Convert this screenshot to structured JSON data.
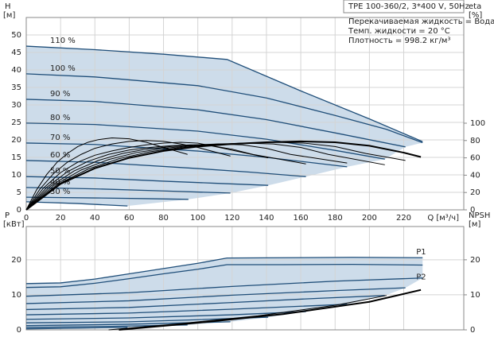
{
  "header": {
    "model": "TPE 100-360/2, 3*400 V, 50Hz",
    "lines": [
      "Перекачиваемая жидкость = Вода",
      "Темп. жидкости = 20 °C",
      "Плотность = 998.2 кг/м³"
    ]
  },
  "chart_data": [
    {
      "type": "line",
      "ylabel": "H",
      "yunit": "[м]",
      "y2label": "eta",
      "y2unit": "[%]",
      "xlabel": "Q [м³/ч]",
      "xlim": [
        0,
        255
      ],
      "xticks": [
        0,
        20,
        40,
        60,
        80,
        100,
        120,
        140,
        160,
        180,
        200,
        220
      ],
      "ylim": [
        0,
        55
      ],
      "yticks": [
        0,
        5,
        10,
        15,
        20,
        25,
        30,
        35,
        40,
        45,
        50
      ],
      "y2lim": [
        0,
        222
      ],
      "y2ticks": [
        0,
        20,
        40,
        60,
        80,
        100
      ],
      "grid": true,
      "shaded_area_color": "#cddcea",
      "series_label_position": "start",
      "series": [
        {
          "name": "110 %",
          "color": "#1f4e79",
          "axis": "y",
          "x": [
            0,
            40,
            80,
            117,
            160,
            200,
            231
          ],
          "values": [
            46.8,
            45.8,
            44.5,
            43,
            34,
            26,
            19.5
          ]
        },
        {
          "name": "100 %",
          "color": "#1f4e79",
          "axis": "y",
          "x": [
            0,
            40,
            100,
            140,
            180,
            210,
            231
          ],
          "values": [
            38.9,
            38,
            35.5,
            32,
            27,
            23,
            19.2
          ]
        },
        {
          "name": "90 %",
          "color": "#1f4e79",
          "axis": "y",
          "x": [
            0,
            40,
            100,
            140,
            180,
            221
          ],
          "values": [
            31.6,
            31,
            28.6,
            25.8,
            22,
            18
          ]
        },
        {
          "name": "80 %",
          "color": "#1f4e79",
          "axis": "y",
          "x": [
            0,
            40,
            100,
            140,
            180,
            209
          ],
          "values": [
            24.8,
            24.4,
            22.5,
            20.2,
            17,
            14.5
          ]
        },
        {
          "name": "70 %",
          "color": "#1f4e79",
          "axis": "y",
          "x": [
            0,
            40,
            100,
            140,
            187
          ],
          "values": [
            19.1,
            18.7,
            16.8,
            15,
            12.3
          ]
        },
        {
          "name": "60 %",
          "color": "#1f4e79",
          "axis": "y",
          "x": [
            0,
            40,
            100,
            130,
            163
          ],
          "values": [
            14.1,
            13.6,
            11.8,
            10.8,
            9.5
          ]
        },
        {
          "name": "50 %",
          "color": "#1f4e79",
          "axis": "y",
          "x": [
            0,
            40,
            80,
            110,
            141
          ],
          "values": [
            9.5,
            9.1,
            8.2,
            7.6,
            7
          ]
        },
        {
          "name": "40 %",
          "color": "#1f4e79",
          "axis": "y",
          "x": [
            0,
            40,
            80,
            119
          ],
          "values": [
            6.4,
            6,
            5.4,
            4.8
          ]
        },
        {
          "name": "30 %",
          "color": "#1f4e79",
          "axis": "y",
          "x": [
            0,
            40,
            70,
            94.5
          ],
          "values": [
            3.6,
            3.4,
            3.2,
            3
          ]
        },
        {
          "name": null,
          "color": "#1f4e79",
          "axis": "y",
          "x": [
            0,
            30,
            59
          ],
          "values": [
            2.3,
            1.8,
            1.1
          ]
        },
        {
          "name": null,
          "color": "#000000",
          "axis": "y2",
          "line_width": 2,
          "x": [
            0,
            20,
            40,
            60,
            80,
            100,
            120,
            140,
            160,
            180,
            200,
            220,
            230
          ],
          "values": [
            0,
            30,
            48,
            60,
            68,
            73,
            76,
            78,
            79,
            78,
            74,
            66,
            61
          ]
        },
        {
          "name": null,
          "color": "#000000",
          "axis": "y2",
          "line_width": 1,
          "x": [
            0,
            18,
            36,
            54,
            72,
            90,
            108,
            126,
            144,
            162,
            180,
            198,
            221
          ],
          "values": [
            0,
            29,
            47,
            59,
            67,
            72,
            75,
            77,
            78,
            77,
            73,
            65,
            57
          ]
        },
        {
          "name": null,
          "color": "#000000",
          "axis": "y2",
          "line_width": 1,
          "x": [
            0,
            16,
            32,
            48,
            64,
            80,
            96,
            112,
            128,
            144,
            160,
            176,
            209
          ],
          "values": [
            0,
            28,
            46,
            58,
            66,
            71,
            74,
            76,
            77,
            76,
            72,
            64,
            52
          ]
        },
        {
          "name": null,
          "color": "#000000",
          "axis": "y2",
          "line_width": 1,
          "x": [
            0,
            14,
            28,
            42,
            56,
            70,
            84,
            98,
            112,
            126,
            140,
            154,
            187
          ],
          "values": [
            0,
            27,
            45,
            57,
            65,
            70,
            73,
            75,
            76,
            75,
            71,
            64,
            54
          ]
        },
        {
          "name": null,
          "color": "#000000",
          "axis": "y2",
          "line_width": 1,
          "x": [
            0,
            12,
            24,
            36,
            48,
            60,
            72,
            84,
            96,
            108,
            120,
            132,
            163
          ],
          "values": [
            0,
            26,
            44,
            56,
            64,
            69,
            72,
            74,
            75,
            74,
            70,
            64,
            53
          ]
        },
        {
          "name": null,
          "color": "#000000",
          "axis": "y2",
          "line_width": 1,
          "x": [
            0,
            10,
            20,
            30,
            40,
            50,
            60,
            70,
            80,
            90,
            100,
            110,
            141
          ],
          "values": [
            0,
            25,
            43,
            55,
            63,
            68,
            72,
            75,
            77,
            78,
            77,
            73,
            60
          ]
        },
        {
          "name": null,
          "color": "#000000",
          "axis": "y2",
          "line_width": 1,
          "x": [
            0,
            8,
            16,
            24,
            32,
            40,
            50,
            60,
            70,
            80,
            90,
            100,
            119
          ],
          "values": [
            0,
            24,
            42,
            55,
            64,
            71,
            76,
            79,
            80,
            79,
            76,
            72,
            62
          ]
        },
        {
          "name": null,
          "color": "#000000",
          "axis": "y2",
          "line_width": 1,
          "x": [
            0,
            6,
            12,
            18,
            24,
            30,
            36,
            42,
            50,
            60,
            70,
            80,
            94
          ],
          "values": [
            0,
            23,
            41,
            55,
            65,
            73,
            78,
            81,
            83,
            82,
            78,
            72,
            64
          ]
        }
      ]
    },
    {
      "type": "line",
      "ylabel": "P",
      "yunit": "[кВт]",
      "y2label": "NPSH",
      "y2unit": "[м]",
      "xlim": [
        0,
        255
      ],
      "ylim": [
        0,
        29.5
      ],
      "yticks": [
        0,
        10,
        20
      ],
      "y2lim": [
        0,
        29.5
      ],
      "y2ticks": [
        0,
        10,
        20
      ],
      "grid": true,
      "shaded_area_color": "#cddcea",
      "series_label_position": "end",
      "series": [
        {
          "name": "P1",
          "color": "#1f4e79",
          "axis": "y",
          "x": [
            0,
            20,
            40,
            60,
            80,
            100,
            117,
            150,
            190,
            231
          ],
          "values": [
            13.2,
            13.4,
            14.5,
            16,
            17.5,
            19,
            20.5,
            20.6,
            20.7,
            20.6
          ]
        },
        {
          "name": "P2",
          "color": "#1f4e79",
          "axis": "y",
          "x": [
            0,
            20,
            40,
            60,
            80,
            100,
            117,
            150,
            190,
            231
          ],
          "values": [
            12.1,
            12.3,
            13.3,
            14.6,
            16,
            17.3,
            18.6,
            18.6,
            18.7,
            18.5
          ]
        },
        {
          "name": null,
          "color": "#1f4e79",
          "axis": "y",
          "x": [
            0,
            60,
            120,
            180,
            231
          ],
          "values": [
            9.6,
            10.6,
            12.4,
            13.9,
            14.8
          ]
        },
        {
          "name": null,
          "color": "#1f4e79",
          "axis": "y",
          "x": [
            0,
            60,
            120,
            180,
            221
          ],
          "values": [
            7.5,
            8.3,
            9.9,
            11.2,
            12
          ]
        },
        {
          "name": null,
          "color": "#1f4e79",
          "axis": "y",
          "x": [
            0,
            60,
            120,
            170,
            209
          ],
          "values": [
            5.8,
            6.4,
            7.8,
            9,
            9.8
          ]
        },
        {
          "name": null,
          "color": "#1f4e79",
          "axis": "y",
          "x": [
            0,
            60,
            120,
            187
          ],
          "values": [
            4.3,
            4.8,
            5.9,
            7.3
          ]
        },
        {
          "name": null,
          "color": "#1f4e79",
          "axis": "y",
          "x": [
            0,
            60,
            120,
            163
          ],
          "values": [
            3,
            3.4,
            4.3,
            5.2
          ]
        },
        {
          "name": null,
          "color": "#1f4e79",
          "axis": "y",
          "x": [
            0,
            60,
            100,
            141
          ],
          "values": [
            2,
            2.3,
            2.9,
            3.6
          ]
        },
        {
          "name": null,
          "color": "#1f4e79",
          "axis": "y",
          "x": [
            0,
            60,
            119
          ],
          "values": [
            1.2,
            1.6,
            2.3
          ]
        },
        {
          "name": null,
          "color": "#1f4e79",
          "axis": "y",
          "x": [
            0,
            50,
            94
          ],
          "values": [
            0.7,
            1,
            1.4
          ]
        },
        {
          "name": null,
          "color": "#1f4e79",
          "axis": "y",
          "x": [
            0,
            30,
            59
          ],
          "values": [
            0.3,
            0.5,
            0.7
          ]
        },
        {
          "name": null,
          "color": "#000000",
          "axis": "y2",
          "line_width": 2,
          "x": [
            54,
            100,
            150,
            200,
            230
          ],
          "values": [
            0,
            2,
            4.5,
            8,
            11.4
          ]
        },
        {
          "name": null,
          "color": "#000000",
          "axis": "y2",
          "line_width": 1,
          "x": [
            48,
            90,
            135,
            180,
            210
          ],
          "values": [
            0,
            1.8,
            4,
            7,
            9.8
          ]
        }
      ]
    }
  ]
}
